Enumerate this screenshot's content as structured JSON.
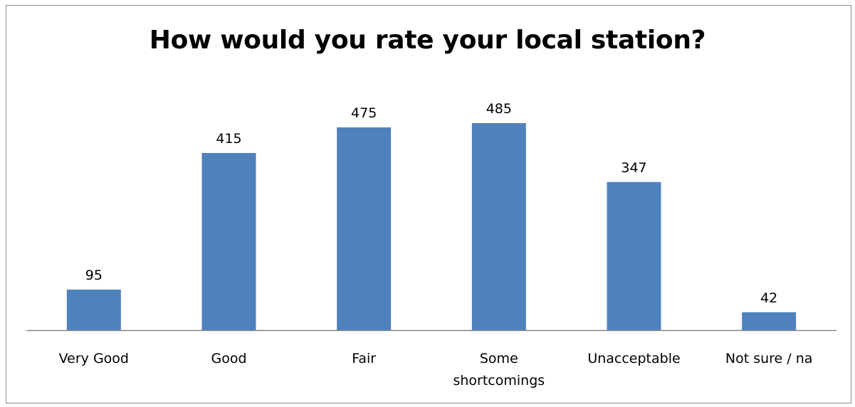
{
  "chart_data": {
    "type": "bar",
    "title": "How would you rate your local station?",
    "categories": [
      "Very Good",
      "Good",
      "Fair",
      "Some shortcomings",
      "Unacceptable",
      "Not sure / na"
    ],
    "category_lines": [
      [
        "Very Good"
      ],
      [
        "Good"
      ],
      [
        "Fair"
      ],
      [
        "Some",
        "shortcomings"
      ],
      [
        "Unacceptable"
      ],
      [
        "Not sure / na"
      ]
    ],
    "values": [
      95,
      415,
      475,
      485,
      347,
      42
    ],
    "data_labels": [
      "95",
      "415",
      "475",
      "485",
      "347",
      "42"
    ],
    "xlabel": "",
    "ylabel": "",
    "ylim": [
      0,
      500
    ],
    "grid": false,
    "legend": "none",
    "bar_color": "#4f81bd",
    "axis_color": "#868686"
  }
}
